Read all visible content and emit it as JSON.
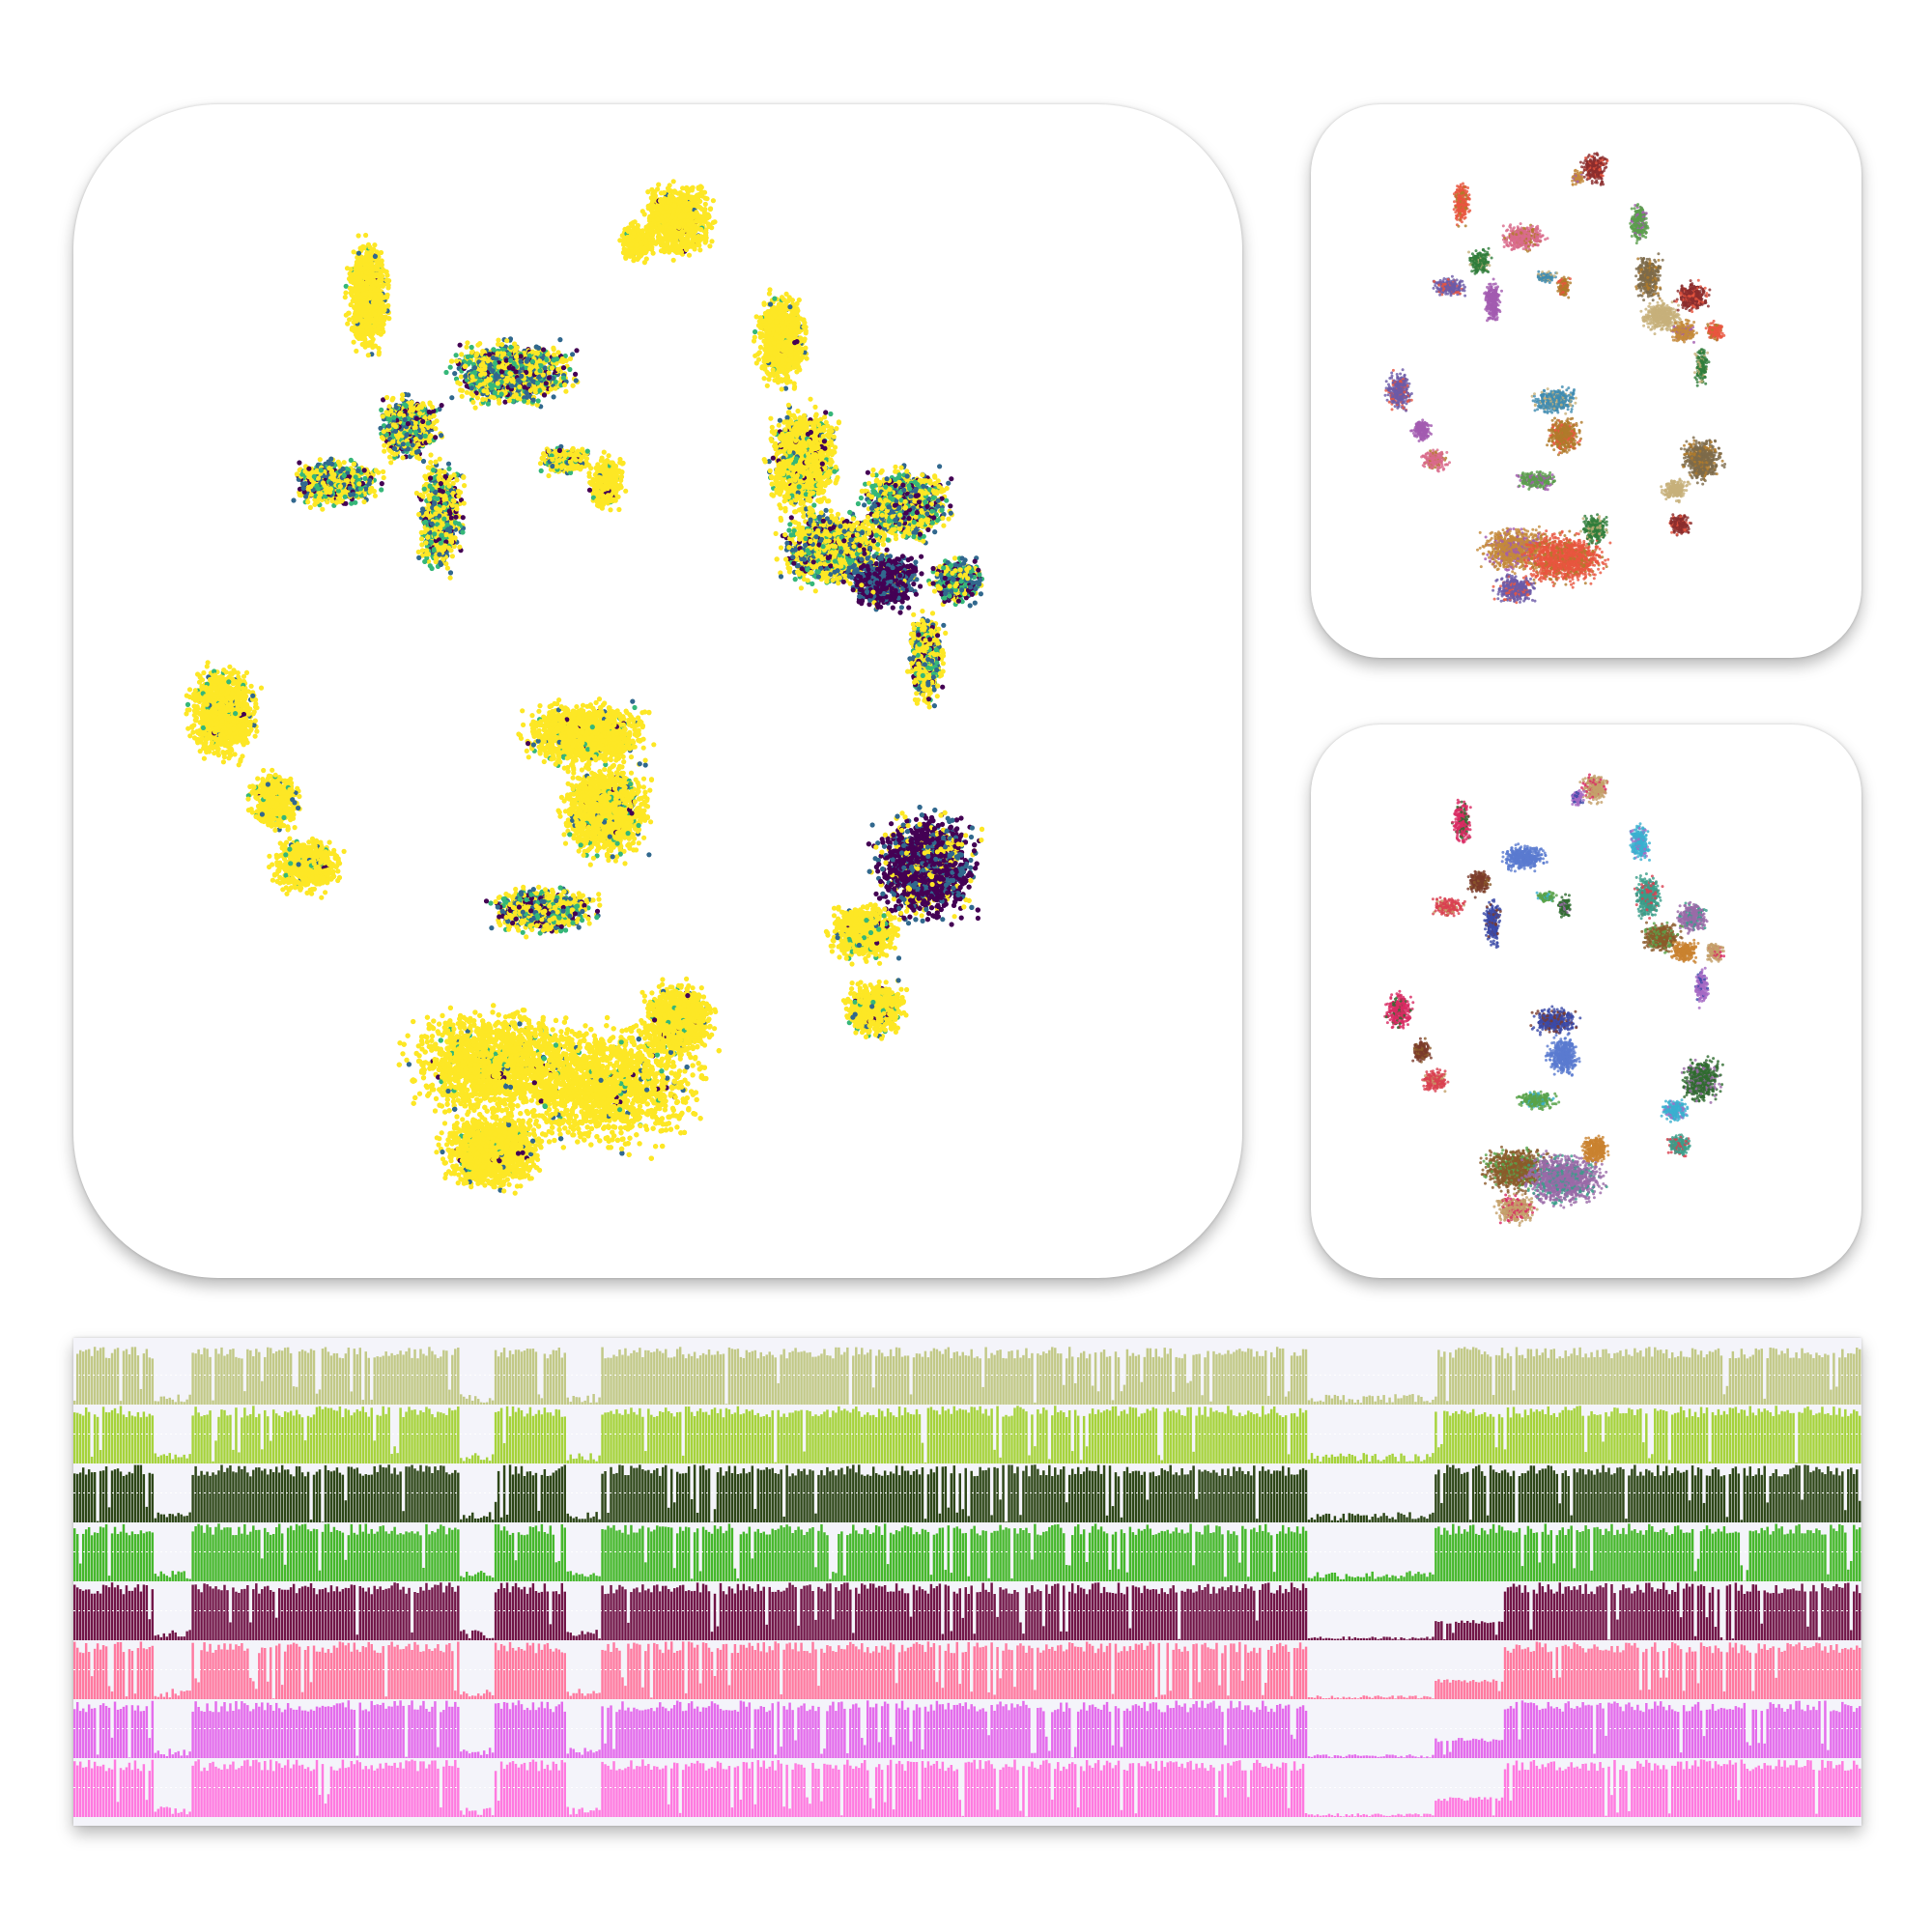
{
  "chart_data": [
    {
      "type": "scatter",
      "panel": "main-embedding",
      "colormap": [
        "#440154",
        "#31688e",
        "#35b779",
        "#fde725"
      ],
      "background": "#ffffff",
      "clusters": [
        {
          "cx": 0.52,
          "cy": 0.07,
          "rx": 0.04,
          "ry": 0.04,
          "mix": 0.02
        },
        {
          "cx": 0.48,
          "cy": 0.09,
          "rx": 0.02,
          "ry": 0.02,
          "mix": 0.02
        },
        {
          "cx": 0.22,
          "cy": 0.14,
          "rx": 0.025,
          "ry": 0.06,
          "mix": 0.05
        },
        {
          "cx": 0.26,
          "cy": 0.26,
          "rx": 0.035,
          "ry": 0.035,
          "mix": 0.55
        },
        {
          "cx": 0.19,
          "cy": 0.31,
          "rx": 0.05,
          "ry": 0.025,
          "mix": 0.5
        },
        {
          "cx": 0.29,
          "cy": 0.34,
          "rx": 0.025,
          "ry": 0.06,
          "mix": 0.45
        },
        {
          "cx": 0.36,
          "cy": 0.21,
          "rx": 0.07,
          "ry": 0.035,
          "mix": 0.55
        },
        {
          "cx": 0.41,
          "cy": 0.29,
          "rx": 0.03,
          "ry": 0.015,
          "mix": 0.2
        },
        {
          "cx": 0.45,
          "cy": 0.31,
          "rx": 0.02,
          "ry": 0.03,
          "mix": 0.05
        },
        {
          "cx": 0.62,
          "cy": 0.18,
          "rx": 0.03,
          "ry": 0.05,
          "mix": 0.05
        },
        {
          "cx": 0.64,
          "cy": 0.29,
          "rx": 0.04,
          "ry": 0.06,
          "mix": 0.15
        },
        {
          "cx": 0.67,
          "cy": 0.37,
          "rx": 0.06,
          "ry": 0.04,
          "mix": 0.45
        },
        {
          "cx": 0.74,
          "cy": 0.33,
          "rx": 0.05,
          "ry": 0.04,
          "mix": 0.55
        },
        {
          "cx": 0.72,
          "cy": 0.4,
          "rx": 0.04,
          "ry": 0.03,
          "mix": 0.95
        },
        {
          "cx": 0.79,
          "cy": 0.4,
          "rx": 0.03,
          "ry": 0.025,
          "mix": 0.75
        },
        {
          "cx": 0.76,
          "cy": 0.47,
          "rx": 0.02,
          "ry": 0.05,
          "mix": 0.35
        },
        {
          "cx": 0.08,
          "cy": 0.52,
          "rx": 0.04,
          "ry": 0.05,
          "mix": 0.05
        },
        {
          "cx": 0.13,
          "cy": 0.6,
          "rx": 0.03,
          "ry": 0.03,
          "mix": 0.05
        },
        {
          "cx": 0.16,
          "cy": 0.66,
          "rx": 0.04,
          "ry": 0.03,
          "mix": 0.05
        },
        {
          "cx": 0.43,
          "cy": 0.54,
          "rx": 0.07,
          "ry": 0.035,
          "mix": 0.08
        },
        {
          "cx": 0.45,
          "cy": 0.61,
          "rx": 0.05,
          "ry": 0.05,
          "mix": 0.1
        },
        {
          "cx": 0.39,
          "cy": 0.7,
          "rx": 0.06,
          "ry": 0.025,
          "mix": 0.5
        },
        {
          "cx": 0.76,
          "cy": 0.66,
          "rx": 0.06,
          "ry": 0.06,
          "mix": 0.85
        },
        {
          "cx": 0.7,
          "cy": 0.72,
          "rx": 0.04,
          "ry": 0.03,
          "mix": 0.1
        },
        {
          "cx": 0.71,
          "cy": 0.79,
          "rx": 0.035,
          "ry": 0.03,
          "mix": 0.1
        },
        {
          "cx": 0.34,
          "cy": 0.84,
          "rx": 0.1,
          "ry": 0.06,
          "mix": 0.04
        },
        {
          "cx": 0.45,
          "cy": 0.86,
          "rx": 0.12,
          "ry": 0.07,
          "mix": 0.04
        },
        {
          "cx": 0.52,
          "cy": 0.8,
          "rx": 0.04,
          "ry": 0.04,
          "mix": 0.06
        },
        {
          "cx": 0.34,
          "cy": 0.92,
          "rx": 0.06,
          "ry": 0.04,
          "mix": 0.04
        }
      ]
    },
    {
      "type": "scatter",
      "panel": "side-embedding-top",
      "palette": [
        "#8b2d2d",
        "#c48a3a",
        "#e8553f",
        "#2f7d3b",
        "#6b5aa8",
        "#a35bb0",
        "#d96a8b",
        "#3f8bb0",
        "#b07a2a",
        "#5a9e4b",
        "#7d6a4a",
        "#c7b07a"
      ]
    },
    {
      "type": "scatter",
      "panel": "side-embedding-bottom",
      "palette": [
        "#c4a06a",
        "#a66ac4",
        "#d82a63",
        "#7a3b2b",
        "#d94050",
        "#3b4aa8",
        "#5a7ad0",
        "#59a34a",
        "#2f6b2f",
        "#3ab0d0",
        "#3a9e8a",
        "#8b5a2b",
        "#9a6aa8",
        "#c9822f"
      ]
    },
    {
      "type": "area",
      "panel": "genome-tracks",
      "series": [
        {
          "color": "#c2c987"
        },
        {
          "color": "#a6d33b"
        },
        {
          "color": "#2e4718"
        },
        {
          "color": "#46b82c"
        },
        {
          "color": "#721648"
        },
        {
          "color": "#ff7aa0"
        },
        {
          "color": "#e46cec"
        },
        {
          "color": "#ff7ae0"
        }
      ],
      "gaps": [
        [
          0.045,
          0.065
        ],
        [
          0.215,
          0.235
        ],
        [
          0.275,
          0.295
        ],
        [
          0.69,
          0.76
        ]
      ],
      "background": "#f4f4fa"
    }
  ]
}
